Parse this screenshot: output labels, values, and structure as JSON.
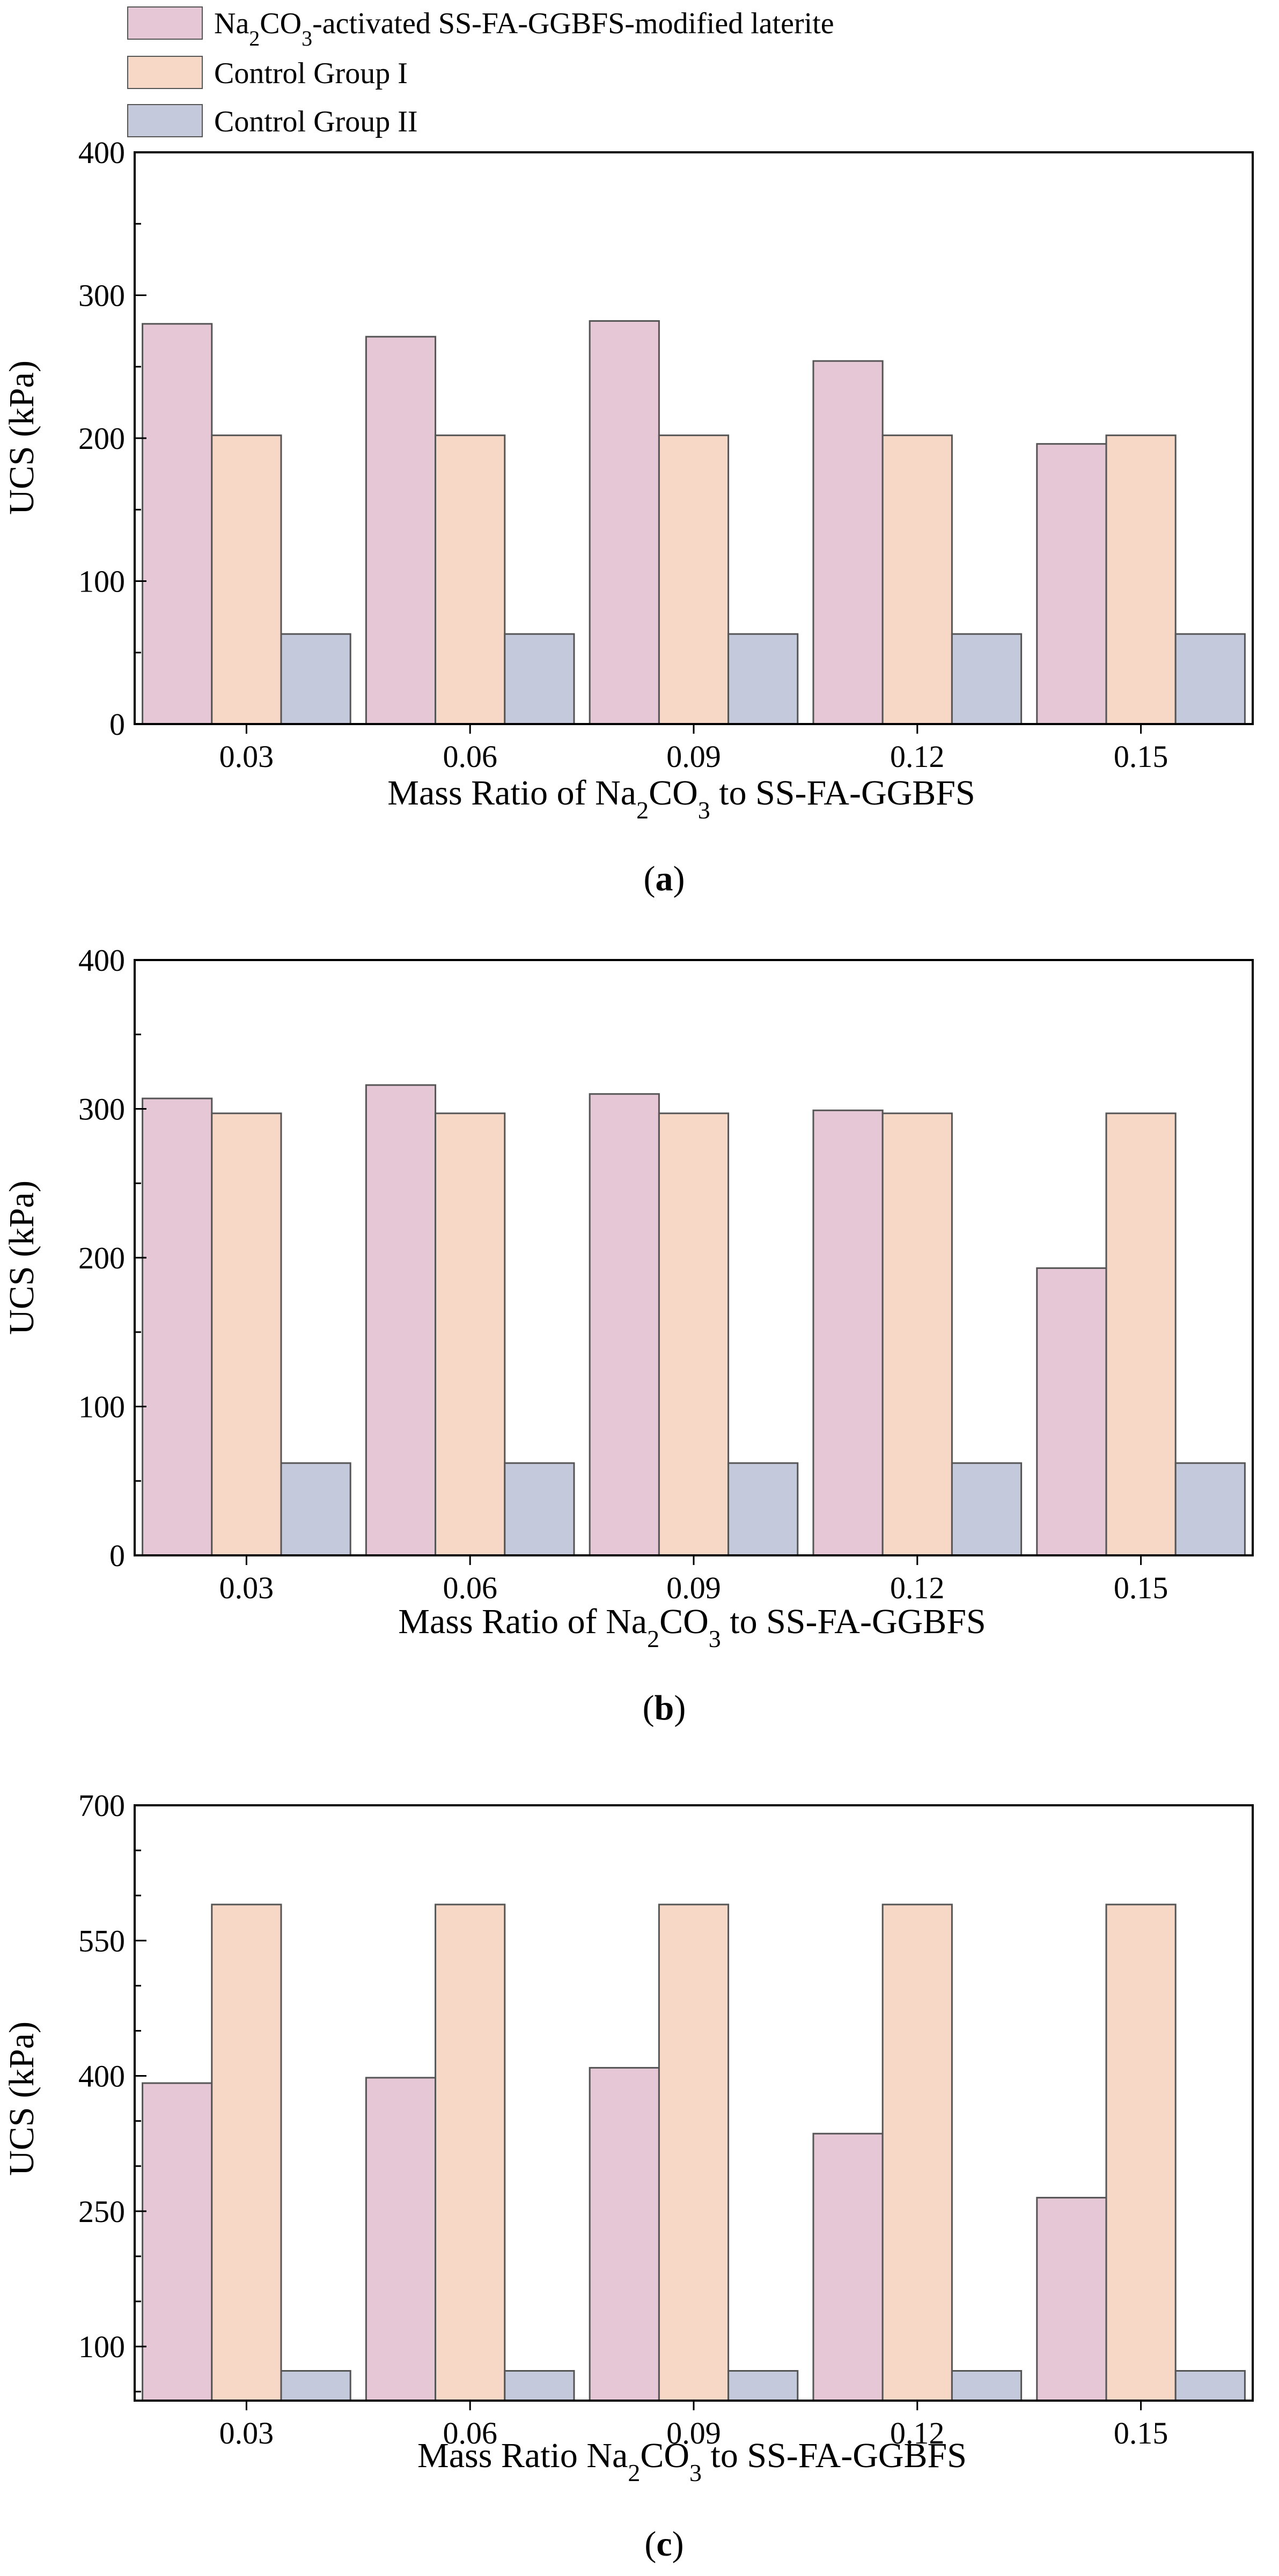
{
  "legend": [
    {
      "pre": "Na",
      "sub1": "2",
      "mid": "CO",
      "sub2": "3",
      "post": "-activated SS-FA-GGBFS-modified laterite",
      "color": "#e5c7d6"
    },
    {
      "text": "Control Group I",
      "color": "#f7d8c7"
    },
    {
      "text": "Control Group II",
      "color": "#c4c9dc"
    }
  ],
  "series_names": [
    "Na2CO3-activated SS-FA-GGBFS-modified laterite",
    "Control Group I",
    "Control Group II"
  ],
  "colors": {
    "s0": "#e5c7d6",
    "s1": "#f7d8c7",
    "s2": "#c4c9dc",
    "stroke": "#555555"
  },
  "chart_data": [
    {
      "type": "bar",
      "panel_label": "a",
      "categories": [
        "0.03",
        "0.06",
        "0.09",
        "0.12",
        "0.15"
      ],
      "series": [
        {
          "name": "Na2CO3-activated SS-FA-GGBFS-modified laterite",
          "values": [
            280,
            271,
            282,
            254,
            196
          ]
        },
        {
          "name": "Control Group I",
          "values": [
            202,
            202,
            202,
            202,
            202
          ]
        },
        {
          "name": "Control Group II",
          "values": [
            63,
            63,
            63,
            63,
            63
          ]
        }
      ],
      "ylabel": "UCS (kPa)",
      "xlabel": {
        "pre": "Mass Ratio of Na",
        "sub1": "2",
        "mid": "CO",
        "sub2": "3",
        "post": " to SS-FA-GGBFS"
      },
      "ylim": [
        0,
        400
      ],
      "yticks": [
        0,
        100,
        200,
        300,
        400
      ],
      "minor_step": 50
    },
    {
      "type": "bar",
      "panel_label": "b",
      "categories": [
        "0.03",
        "0.06",
        "0.09",
        "0.12",
        "0.15"
      ],
      "series": [
        {
          "name": "Na2CO3-activated SS-FA-GGBFS-modified laterite",
          "values": [
            307,
            316,
            310,
            299,
            193
          ]
        },
        {
          "name": "Control Group I",
          "values": [
            297,
            297,
            297,
            297,
            297
          ]
        },
        {
          "name": "Control Group II",
          "values": [
            62,
            62,
            62,
            62,
            62
          ]
        }
      ],
      "ylabel": "UCS (kPa)",
      "xlabel": {
        "pre": "Mass Ratio of Na",
        "sub1": "2",
        "mid": "CO",
        "sub2": "3",
        "post": " to SS-FA-GGBFS"
      },
      "ylim": [
        0,
        400
      ],
      "yticks": [
        0,
        100,
        200,
        300,
        400
      ],
      "minor_step": 50
    },
    {
      "type": "bar",
      "panel_label": "c",
      "categories": [
        "0.03",
        "0.06",
        "0.09",
        "0.12",
        "0.15"
      ],
      "series": [
        {
          "name": "Na2CO3-activated SS-FA-GGBFS-modified laterite",
          "values": [
            392,
            398,
            409,
            336,
            265
          ]
        },
        {
          "name": "Control Group I",
          "values": [
            590,
            590,
            590,
            590,
            590
          ]
        },
        {
          "name": "Control Group II",
          "values": [
            73,
            73,
            73,
            73,
            73
          ]
        }
      ],
      "ylabel": "UCS (kPa)",
      "xlabel": {
        "pre": "Mass Ratio Na",
        "sub1": "2",
        "mid": "CO",
        "sub2": "3",
        "post": " to SS-FA-GGBFS"
      },
      "ylim": [
        40,
        700
      ],
      "yticks": [
        100,
        250,
        400,
        550,
        700
      ],
      "minor_step": 50
    }
  ]
}
